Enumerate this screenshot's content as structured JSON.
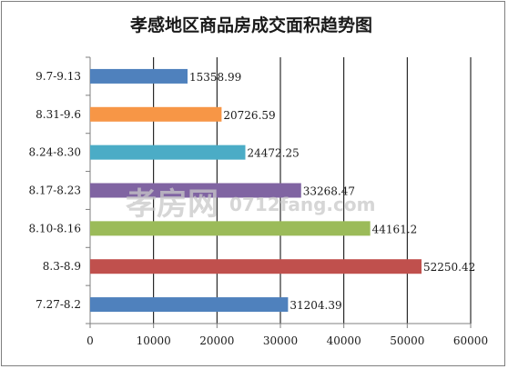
{
  "chart_data": {
    "type": "bar",
    "orientation": "horizontal",
    "title": "孝感地区商品房成交面积趋势图",
    "categories": [
      "9.7-9.13",
      "8.31-9.6",
      "8.24-8.30",
      "8.17-8.23",
      "8.10-8.16",
      "8.3-8.9",
      "7.27-8.2"
    ],
    "values": [
      15358.99,
      20726.59,
      24472.25,
      33268.47,
      44161.2,
      52250.42,
      31204.39
    ],
    "data_labels": [
      "15358.99",
      "20726.59",
      "24472.25",
      "33268.47",
      "44161.2",
      "52250.42",
      "31204.39"
    ],
    "colors": [
      "#4f81bd",
      "#f79646",
      "#4bacc6",
      "#8064a2",
      "#9bbb59",
      "#c0504d",
      "#4f81bd"
    ],
    "xlim": [
      0,
      60000
    ],
    "xticks": [
      "0",
      "10000",
      "20000",
      "30000",
      "40000",
      "50000",
      "60000"
    ],
    "xlabel": "",
    "ylabel": "",
    "grid": "vertical",
    "legend": "none"
  },
  "watermark": {
    "brand": "孝房网",
    "domain": "0712fang.com"
  }
}
